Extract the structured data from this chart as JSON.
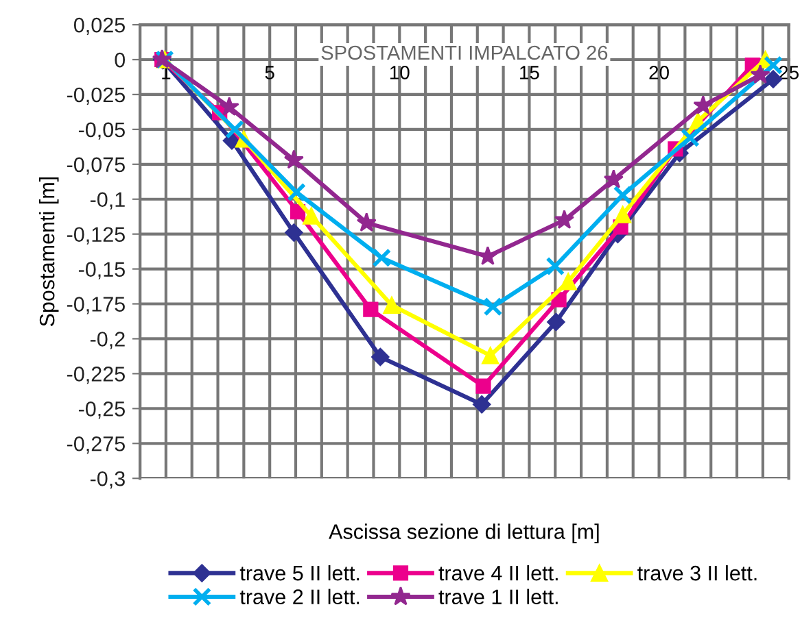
{
  "chart_data": {
    "type": "line",
    "title": "SPOSTAMENTI IMPALCATO 26",
    "xlabel": "Ascissa sezione di lettura [m]",
    "ylabel": "Spostamenti [m]",
    "xlim": [
      0,
      25
    ],
    "ylim": [
      -0.3,
      0.025
    ],
    "xticks": [
      {
        "value": 0,
        "label": null
      },
      1,
      {
        "value": 2,
        "label": null
      },
      {
        "value": 3,
        "label": null
      },
      {
        "value": 4,
        "label": null
      },
      5,
      {
        "value": 6,
        "label": null
      },
      {
        "value": 7,
        "label": null
      },
      {
        "value": 8,
        "label": null
      },
      {
        "value": 9,
        "label": null
      },
      10,
      {
        "value": 11,
        "label": null
      },
      {
        "value": 12,
        "label": null
      },
      {
        "value": 13,
        "label": null
      },
      {
        "value": 14,
        "label": null
      },
      15,
      {
        "value": 16,
        "label": null
      },
      {
        "value": 17,
        "label": null
      },
      {
        "value": 18,
        "label": null
      },
      {
        "value": 19,
        "label": null
      },
      20,
      {
        "value": 21,
        "label": null
      },
      {
        "value": 22,
        "label": null
      },
      {
        "value": 23,
        "label": null
      },
      {
        "value": 24,
        "label": null
      },
      25
    ],
    "yticks": [
      {
        "value": 0.025,
        "label": "0,025"
      },
      0,
      {
        "value": -0.025,
        "label": "-0,025"
      },
      {
        "value": -0.05,
        "label": "-0,05"
      },
      {
        "value": -0.075,
        "label": "-0,075"
      },
      {
        "value": -0.1,
        "label": "-0,1"
      },
      {
        "value": -0.125,
        "label": "-0,125"
      },
      {
        "value": -0.15,
        "label": "-0,15"
      },
      {
        "value": -0.175,
        "label": "-0,175"
      },
      {
        "value": -0.2,
        "label": "-0,2"
      },
      {
        "value": -0.225,
        "label": "-0,225"
      },
      {
        "value": -0.25,
        "label": "-0,25"
      },
      {
        "value": -0.275,
        "label": "-0,275"
      },
      {
        "value": -0.3,
        "label": "-0,3"
      }
    ],
    "grid": true,
    "legend": "bottom",
    "line_style": "solid",
    "series": [
      {
        "name": "trave 5 II lett.",
        "color": "#2e3192",
        "marker": "diamond",
        "x": [
          0.85,
          3.54,
          5.93,
          9.26,
          13.17,
          16.03,
          18.41,
          20.79,
          24.4
        ],
        "values": [
          0,
          -0.058,
          -0.124,
          -0.213,
          -0.247,
          -0.188,
          -0.125,
          -0.067,
          -0.014
        ]
      },
      {
        "name": "trave 4 II lett.",
        "color": "#ec008c",
        "marker": "square",
        "x": [
          0.85,
          3.07,
          6.08,
          8.89,
          13.23,
          16.14,
          18.52,
          20.63,
          23.6
        ],
        "values": [
          0,
          -0.038,
          -0.109,
          -0.179,
          -0.234,
          -0.172,
          -0.12,
          -0.064,
          -0.004
        ]
      },
      {
        "name": "trave 3 II lett.",
        "color": "#ffff00",
        "marker": "triangle",
        "x": [
          0.95,
          4.0,
          6.6,
          9.7,
          13.5,
          16.5,
          18.6,
          21.5,
          24.1
        ],
        "values": [
          0,
          -0.057,
          -0.112,
          -0.176,
          -0.212,
          -0.159,
          -0.111,
          -0.044,
          0
        ]
      },
      {
        "name": "trave 2 II lett.",
        "color": "#00aeef",
        "marker": "cross",
        "x": [
          0.95,
          3.65,
          6.03,
          9.31,
          13.6,
          16.0,
          18.6,
          21.2,
          24.4
        ],
        "values": [
          0,
          -0.05,
          -0.095,
          -0.142,
          -0.177,
          -0.148,
          -0.097,
          -0.056,
          -0.004
        ]
      },
      {
        "name": "trave 1 II lett.",
        "color": "#92278f",
        "marker": "star",
        "x": [
          0.85,
          3.44,
          5.93,
          8.73,
          13.4,
          16.35,
          18.25,
          21.7,
          23.9
        ],
        "values": [
          0,
          -0.034,
          -0.072,
          -0.117,
          -0.141,
          -0.115,
          -0.086,
          -0.033,
          -0.011
        ]
      }
    ]
  }
}
